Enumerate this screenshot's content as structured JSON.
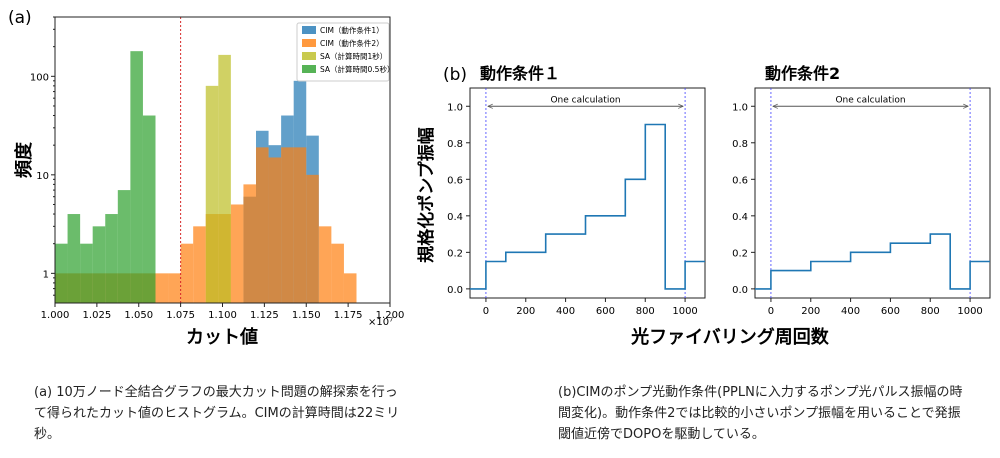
{
  "panel_a": {
    "label": "(a)",
    "ylabel": "頻度",
    "xlabel": "カット値",
    "offset": "×10⁷"
  },
  "panel_b": {
    "label": "(b)",
    "ylabel": "規格化ポンプ振幅",
    "xlabel": "光ファイバリング周回数"
  },
  "captions": {
    "a": "(a) 10万ノード全結合グラフの最大カット問題の解探索を行って得られたカット値のヒストグラム。CIMの計算時間は22ミリ秒。",
    "b": "(b)CIMのポンプ光動作条件(PPLNに入力するポンプ光パルス振幅の時間変化)。動作条件2では比較的小さいポンプ振幅を用いることで発振閾値近傍でDOPOを駆動している。"
  },
  "chart_data": [
    {
      "type": "bar",
      "title": "",
      "xlabel": "カット値",
      "ylabel": "頻度",
      "xscale_offset": "×10⁷",
      "xlim": [
        1.0,
        1.2
      ],
      "ylim": [
        0.5,
        400
      ],
      "yscale": "log",
      "xticks": [
        "1.000",
        "1.025",
        "1.050",
        "1.075",
        "1.100",
        "1.125",
        "1.150",
        "1.175",
        "1.200"
      ],
      "yticks": [
        "1",
        "10",
        "100"
      ],
      "vline": 1.075,
      "bin_width": 0.0075,
      "legend_position": "top-right",
      "series": [
        {
          "name": "CIM（動作条件1）",
          "color": "#1f77b4",
          "bins": [
            1.1125,
            1.12,
            1.1275,
            1.135,
            1.1425,
            1.15
          ],
          "values": [
            6,
            28,
            20,
            40,
            90,
            25
          ]
        },
        {
          "name": "CIM（動作条件2）",
          "color": "#ff7f0e",
          "bins": [
            1.0,
            1.0075,
            1.015,
            1.0225,
            1.03,
            1.0375,
            1.045,
            1.0525,
            1.06,
            1.0675,
            1.075,
            1.0825,
            1.09,
            1.0975,
            1.105,
            1.1125,
            1.12,
            1.1275,
            1.135,
            1.1425,
            1.15,
            1.1575,
            1.165,
            1.1725
          ],
          "values": [
            1,
            1,
            1,
            1,
            1,
            1,
            1,
            1,
            1,
            1,
            2,
            3,
            4,
            4,
            5,
            8,
            19,
            15,
            19,
            19,
            10,
            3,
            2,
            1
          ]
        },
        {
          "name": "SA（計算時間1秒）",
          "color": "#bcbd22",
          "bins": [
            1.09,
            1.0975
          ],
          "values": [
            80,
            165
          ]
        },
        {
          "name": "SA（計算時間0.5秒）",
          "color": "#2ca02c",
          "bins": [
            1.0,
            1.0075,
            1.015,
            1.0225,
            1.03,
            1.0375,
            1.045,
            1.0525
          ],
          "values": [
            2,
            4,
            2,
            3,
            4,
            7,
            180,
            40
          ]
        }
      ]
    },
    {
      "type": "line",
      "title": "動作条件１",
      "xlabel": "光ファイバリング周回数",
      "ylabel": "規格化ポンプ振幅",
      "xlim": [
        -80,
        1100
      ],
      "ylim": [
        -0.05,
        1.1
      ],
      "xticks": [
        0,
        200,
        400,
        600,
        800,
        1000
      ],
      "yticks": [
        0.0,
        0.2,
        0.4,
        0.6,
        0.8,
        1.0
      ],
      "annotation": "One calculation",
      "vlines": [
        0,
        1000
      ],
      "color": "#1f77b4",
      "step_x": [
        -80,
        0,
        0,
        100,
        100,
        300,
        300,
        500,
        500,
        700,
        700,
        800,
        800,
        900,
        900,
        1000,
        1000,
        1100
      ],
      "step_y": [
        0,
        0,
        0.15,
        0.15,
        0.2,
        0.2,
        0.3,
        0.3,
        0.4,
        0.4,
        0.6,
        0.6,
        0.9,
        0.9,
        0,
        0,
        0.15,
        0.15
      ]
    },
    {
      "type": "line",
      "title": "動作条件2",
      "xlabel": "光ファイバリング周回数",
      "ylabel": "",
      "xlim": [
        -80,
        1100
      ],
      "ylim": [
        -0.05,
        1.1
      ],
      "xticks": [
        0,
        200,
        400,
        600,
        800,
        1000
      ],
      "yticks": [
        0.0,
        0.2,
        0.4,
        0.6,
        0.8,
        1.0
      ],
      "annotation": "One calculation",
      "vlines": [
        0,
        1000
      ],
      "color": "#1f77b4",
      "step_x": [
        -80,
        0,
        0,
        200,
        200,
        400,
        400,
        600,
        600,
        800,
        800,
        900,
        900,
        1000,
        1000,
        1100
      ],
      "step_y": [
        0,
        0,
        0.1,
        0.1,
        0.15,
        0.15,
        0.2,
        0.2,
        0.25,
        0.25,
        0.3,
        0.3,
        0,
        0,
        0.15,
        0.15
      ]
    }
  ]
}
